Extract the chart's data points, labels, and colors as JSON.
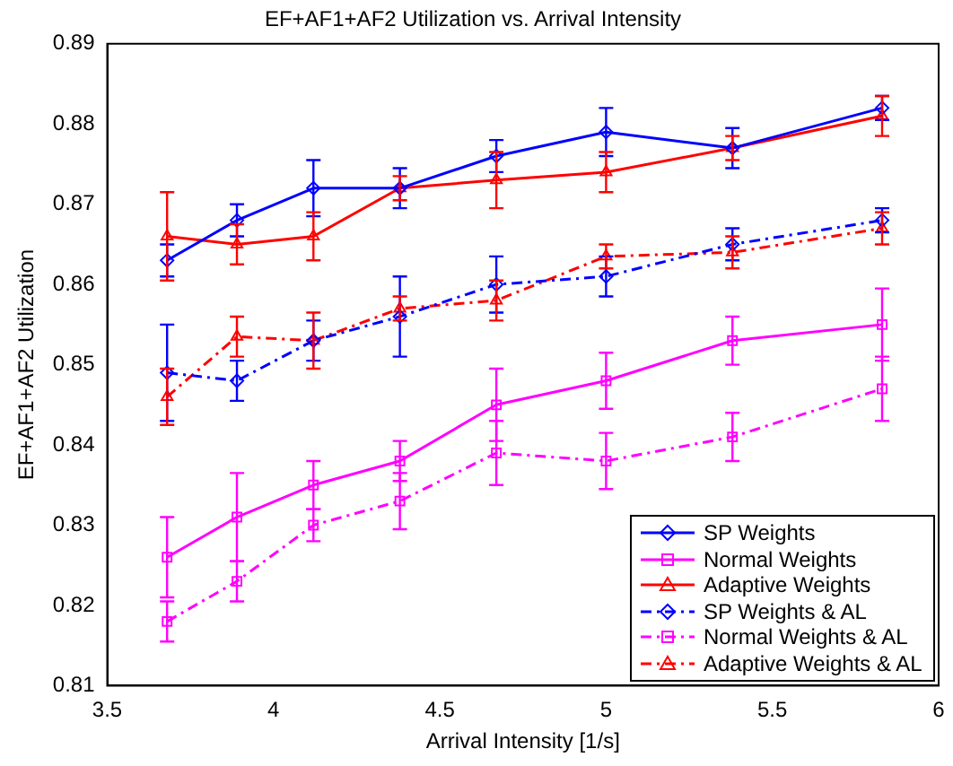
{
  "chart_data": {
    "type": "line",
    "title": "EF+AF1+AF2 Utilization vs. Arrival Intensity",
    "xlabel": "Arrival Intensity [1/s]",
    "ylabel": "EF+AF1+AF2 Utilization",
    "x": [
      3.68,
      3.89,
      4.12,
      4.38,
      4.67,
      5.0,
      5.38,
      5.83
    ],
    "series": [
      {
        "name": "SP Weights",
        "color": "#0000ff",
        "marker": "diamond",
        "line_style": "solid",
        "values": [
          0.863,
          0.868,
          0.872,
          0.872,
          0.876,
          0.879,
          0.877,
          0.882
        ],
        "errors": [
          0.002,
          0.002,
          0.0035,
          0.0025,
          0.002,
          0.003,
          0.0025,
          0.0015
        ]
      },
      {
        "name": "Normal Weights",
        "color": "#ff00ff",
        "marker": "square",
        "line_style": "solid",
        "values": [
          0.826,
          0.831,
          0.835,
          0.838,
          0.845,
          0.848,
          0.853,
          0.855
        ],
        "errors": [
          0.005,
          0.0055,
          0.003,
          0.0025,
          0.0045,
          0.0035,
          0.003,
          0.0045
        ]
      },
      {
        "name": "Adaptive Weights",
        "color": "#ff0000",
        "marker": "triangle",
        "line_style": "solid",
        "values": [
          0.866,
          0.865,
          0.866,
          0.872,
          0.873,
          0.874,
          0.877,
          0.881
        ],
        "errors": [
          0.0055,
          0.0025,
          0.003,
          0.0015,
          0.0035,
          0.0025,
          0.0015,
          0.0025
        ]
      },
      {
        "name": "SP Weights & AL",
        "color": "#0000ff",
        "marker": "diamond",
        "line_style": "dashed",
        "values": [
          0.849,
          0.848,
          0.853,
          0.856,
          0.86,
          0.861,
          0.865,
          0.868
        ],
        "errors": [
          0.006,
          0.0025,
          0.0025,
          0.005,
          0.0035,
          0.0025,
          0.002,
          0.0015
        ]
      },
      {
        "name": "Normal Weights & AL",
        "color": "#ff00ff",
        "marker": "square",
        "line_style": "dashed",
        "values": [
          0.818,
          0.823,
          0.83,
          0.833,
          0.839,
          0.838,
          0.841,
          0.847
        ],
        "errors": [
          0.0025,
          0.0025,
          0.002,
          0.0035,
          0.004,
          0.0035,
          0.003,
          0.004
        ]
      },
      {
        "name": "Adaptive Weights & AL",
        "color": "#ff0000",
        "marker": "triangle",
        "line_style": "dashed",
        "values": [
          0.846,
          0.8535,
          0.853,
          0.857,
          0.858,
          0.8635,
          0.864,
          0.867
        ],
        "errors": [
          0.0035,
          0.0025,
          0.0035,
          0.0015,
          0.0025,
          0.0015,
          0.002,
          0.002
        ]
      }
    ],
    "xlim": [
      3.5,
      6
    ],
    "xticks": [
      3.5,
      4,
      4.5,
      5,
      5.5,
      6
    ],
    "ylim": [
      0.81,
      0.89
    ],
    "yticks": [
      0.81,
      0.82,
      0.83,
      0.84,
      0.85,
      0.86,
      0.87,
      0.88,
      0.89
    ],
    "grid": false,
    "legend": "bottom right"
  }
}
